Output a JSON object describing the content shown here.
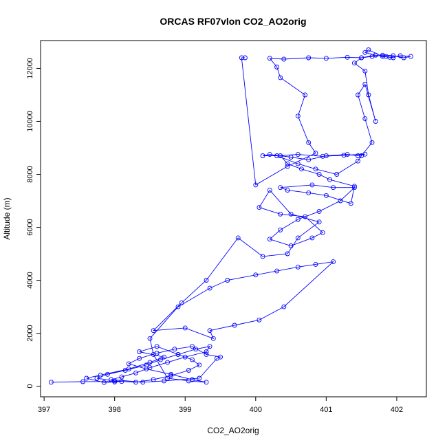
{
  "chart_data": {
    "type": "line",
    "title": "ORCAS RF07vlon CO2_AO2orig",
    "xlabel": "CO2_AO2orig",
    "ylabel": "Altitude (m)",
    "xlim": [
      396.95,
      402.42
    ],
    "ylim": [
      -400,
      13050
    ],
    "xticks": [
      397,
      398,
      399,
      400,
      401,
      402
    ],
    "yticks": [
      0,
      2000,
      4000,
      6000,
      8000,
      10000,
      12000
    ],
    "grid": false,
    "legend": "none",
    "series_color": "#0000ff",
    "series": [
      {
        "x": [
          397.1,
          397.55,
          398.1,
          398.0,
          397.85,
          397.6,
          397.8,
          398.2,
          398.5,
          398.7,
          398.35,
          398.6,
          398.9,
          399.1,
          399.2,
          399.05,
          398.8,
          398.55,
          398.3,
          398.0,
          397.75,
          397.9,
          398.15,
          398.45,
          398.65,
          398.9,
          399.15,
          399.35,
          399.3,
          399.0,
          398.75,
          398.5,
          398.3,
          398.1,
          397.95,
          398.4,
          398.7,
          399.2,
          399.45,
          399.5,
          399.3,
          399.1,
          398.85,
          398.6,
          398.35,
          398.2,
          398.45,
          398.8,
          399.1,
          399.3,
          399.05,
          398.75,
          398.55,
          398.5,
          398.9,
          399.35,
          399.6,
          400.0,
          400.3,
          400.6,
          400.85,
          401.1,
          400.4,
          400.05,
          399.7,
          399.35,
          399.4,
          399.0,
          398.55,
          398.95,
          399.3,
          399.75,
          400.1,
          400.45,
          400.6,
          400.9,
          400.5,
          400.2,
          400.05,
          400.35,
          400.7,
          400.95,
          400.8,
          400.5,
          400.2,
          400.35,
          400.6,
          400.9,
          401.2,
          401.4,
          401.1,
          400.8,
          400.35,
          400.45,
          400.75,
          401.0,
          401.35,
          401.4,
          401.05,
          400.9,
          400.65,
          400.45,
          400.35,
          400.1,
          400.2,
          400.5,
          400.75,
          401.0,
          401.3,
          401.45,
          401.55,
          401.25,
          400.95,
          400.6,
          400.3,
          400.6,
          400.85,
          401.15,
          401.45,
          401.5,
          401.65,
          401.55,
          401.45,
          401.55,
          401.7,
          401.6,
          401.55,
          401.4,
          401.5,
          401.65,
          401.8,
          401.95,
          402.1,
          402.2,
          402.05,
          401.9,
          401.7,
          401.55,
          401.6,
          401.8,
          401.95,
          401.85,
          401.7,
          401.5,
          401.3,
          401.0,
          400.75,
          400.4,
          400.2,
          400.3,
          400.35,
          400.7,
          400.6,
          400.75,
          400.85,
          400.45,
          400.0,
          399.8,
          399.85
        ],
        "y": [
          150,
          170,
          180,
          160,
          140,
          300,
          420,
          650,
          900,
          1100,
          1300,
          1500,
          1200,
          1000,
          800,
          600,
          400,
          250,
          150,
          200,
          300,
          450,
          600,
          800,
          1000,
          1200,
          1400,
          1500,
          1300,
          1100,
          900,
          700,
          500,
          350,
          250,
          150,
          200,
          300,
          1050,
          1100,
          1200,
          1500,
          1400,
          1250,
          1050,
          850,
          650,
          450,
          250,
          150,
          200,
          300,
          1200,
          1800,
          3000,
          3700,
          4000,
          4200,
          4350,
          4500,
          4600,
          4700,
          3000,
          2500,
          2300,
          2100,
          1800,
          2200,
          2100,
          3150,
          4000,
          5600,
          4900,
          5000,
          5600,
          6200,
          6500,
          7400,
          6750,
          6500,
          6400,
          5800,
          5600,
          5300,
          5550,
          5900,
          6300,
          6600,
          7000,
          7500,
          7500,
          7600,
          7500,
          7400,
          7300,
          7200,
          6900,
          7550,
          7800,
          8000,
          8200,
          8400,
          8700,
          8700,
          8750,
          8650,
          8550,
          8700,
          8750,
          8700,
          8760,
          8720,
          8680,
          8750,
          8700,
          8400,
          8200,
          8000,
          8500,
          8700,
          9200,
          10100,
          11000,
          11400,
          10000,
          11000,
          11900,
          12200,
          12400,
          12450,
          12500,
          12480,
          12400,
          12450,
          12480,
          12420,
          12500,
          12600,
          12700,
          12450,
          12400,
          12450,
          12500,
          12400,
          12420,
          12380,
          12400,
          12350,
          12380,
          12050,
          11650,
          11000,
          10200,
          9200,
          8800,
          8300,
          7600,
          12400,
          12400
        ]
      }
    ]
  }
}
